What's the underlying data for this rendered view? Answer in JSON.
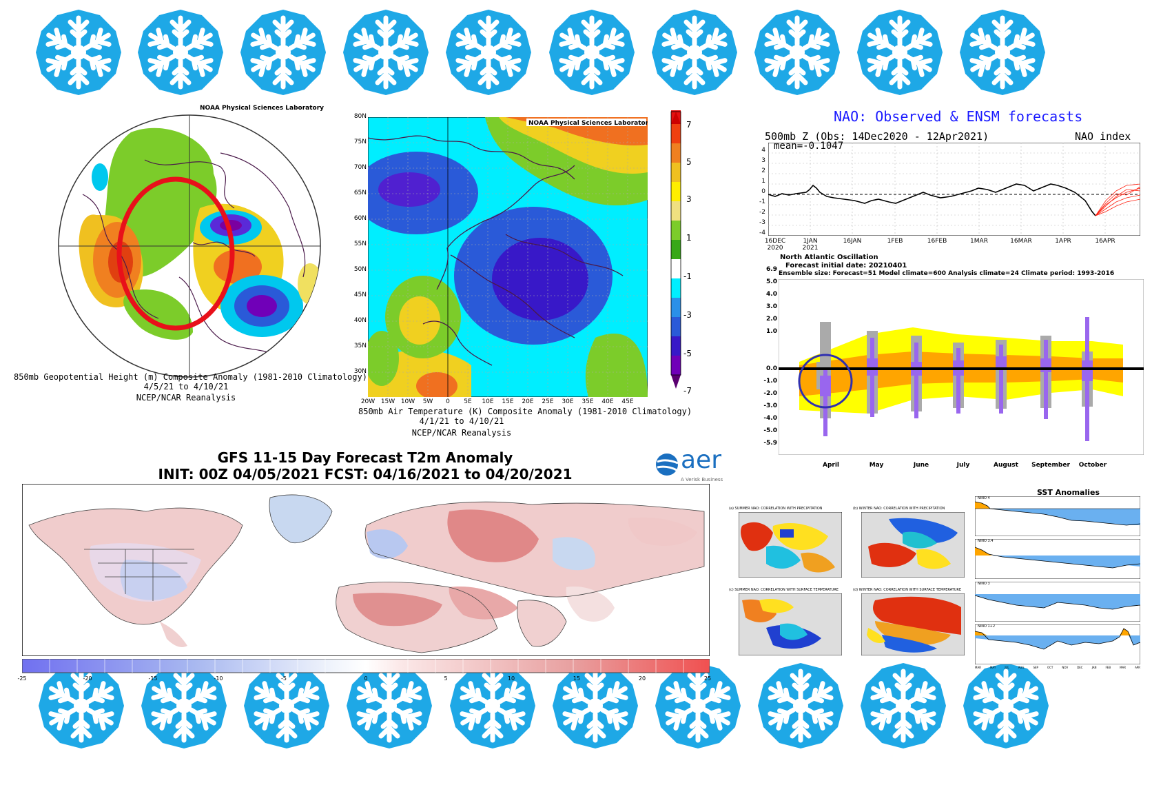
{
  "colors": {
    "snowflake": "#1ea8e6",
    "nao_title": "#1a1aff",
    "red_ellipse": "#e8101a",
    "blue_circle": "#3030b0",
    "warm": "#e05050",
    "cold": "#6a6ae8",
    "yellow": "#ffff00",
    "orange": "#ffa500",
    "purple_bar": "#9966ee"
  },
  "icons": {
    "snowflake": "snowflake-icon"
  },
  "map1": {
    "header": "NOAA Physical Sciences Laboratory",
    "caption_line1": "850mb Geopotential Height (m) Composite Anomaly (1981-2010 Climatology)",
    "caption_line2": "4/5/21  to 4/10/21",
    "caption_line3": "NCEP/NCAR Reanalysis"
  },
  "map2": {
    "header": "NOAA Physical Sciences Laboratory",
    "lat_labels": [
      "80N",
      "75N",
      "70N",
      "65N",
      "60N",
      "55N",
      "50N",
      "45N",
      "40N",
      "35N",
      "30N"
    ],
    "lon_labels": [
      "20W",
      "15W",
      "10W",
      "5W",
      "0",
      "5E",
      "10E",
      "15E",
      "20E",
      "25E",
      "30E",
      "35E",
      "40E",
      "45E"
    ],
    "colorbar_labels": [
      "7",
      "5",
      "3",
      "1",
      "-1",
      "-3",
      "-5",
      "-7"
    ],
    "caption_line1": "850mb Air Temperature (K) Composite Anomaly (1981-2010 Climatology)",
    "caption_line2": "4/1/21  to 4/10/21",
    "caption_line3": "NCEP/NCAR Reanalysis"
  },
  "nao_top": {
    "title": "NAO: Observed & ENSM forecasts",
    "subtitle": "500mb Z (Obs: 14Dec2020 - 12Apr2021)",
    "index_label": "NAO index",
    "mean_label": "mean=-0.1047",
    "y_ticks": [
      "4",
      "3",
      "2",
      "1",
      "0",
      "-1",
      "-2",
      "-3",
      "-4"
    ],
    "x_ticks": [
      {
        "l1": "16DEC",
        "l2": "2020"
      },
      {
        "l1": "1JAN",
        "l2": "2021"
      },
      {
        "l1": "16JAN",
        "l2": ""
      },
      {
        "l1": "1FEB",
        "l2": ""
      },
      {
        "l1": "16FEB",
        "l2": ""
      },
      {
        "l1": "1MAR",
        "l2": ""
      },
      {
        "l1": "16MAR",
        "l2": ""
      },
      {
        "l1": "1APR",
        "l2": ""
      },
      {
        "l1": "16APR",
        "l2": ""
      }
    ]
  },
  "nao_forecast": {
    "title": "North Atlantic Oscillation",
    "init_label": "Forecast initial date: 20210401",
    "ensemble_label": "Ensemble size: Forecast=51 Model climate=600 Analysis climate=24   Climate period: 1993-2016",
    "y_ticks": [
      "6.9",
      "5.0",
      "4.0",
      "3.0",
      "2.0",
      "1.0",
      "0.0",
      "-1.0",
      "-2.0",
      "-3.0",
      "-4.0",
      "-5.0",
      "-5.9"
    ],
    "months": [
      "April",
      "May",
      "June",
      "July",
      "August",
      "September",
      "October"
    ]
  },
  "gfs": {
    "title_line1": "GFS 11-15 Day Forecast T2m Anomaly",
    "title_line2": "INIT: 00Z 04/05/2021     FCST: 04/16/2021 to 04/20/2021",
    "logo_text": "aer",
    "logo_sub": "A Verisk Business",
    "colorbar_labels": [
      "-25",
      "-20",
      "-15",
      "-10",
      "-5",
      "0",
      "5",
      "10",
      "15",
      "20",
      "25"
    ]
  },
  "nao_correlation": {
    "a": "(a) SUMMER NAO: CORRELATION WITH PRECIPITATION",
    "b": "(b) WINTER NAO: CORRELATION WITH PRECIPITATION",
    "c": "(c) SUMMER NAO: CORRELATION WITH SURFACE TEMPERATURE",
    "d": "(d) WINTER NAO: CORRELATION WITH SURFACE TEMPERATURE"
  },
  "sst": {
    "title": "SST Anomalies",
    "panels": [
      "NINO 4",
      "NINO 3.4",
      "NINO 3",
      "NINO 1+2"
    ],
    "months": [
      "MAR",
      "MAY",
      "JUL",
      "AUG",
      "SEP",
      "OCT",
      "NOV",
      "DEC",
      "JAN",
      "FEB",
      "MAR",
      "APR"
    ]
  }
}
